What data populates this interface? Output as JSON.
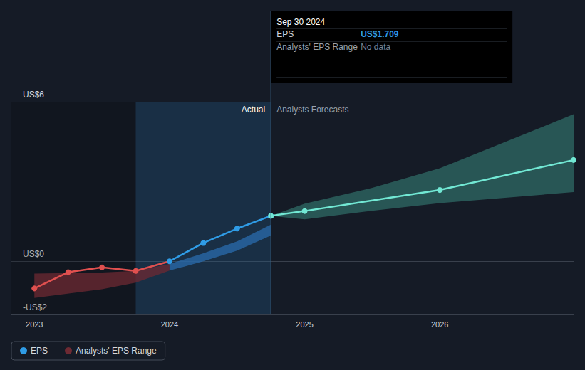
{
  "chart_data": {
    "type": "line",
    "xlim": [
      2022.83,
      2026.99
    ],
    "xticks": [
      2023,
      2024,
      2025,
      2026
    ],
    "ylim": [
      -2,
      6
    ],
    "yticks": [
      {
        "value": -2,
        "label": "-US$2"
      },
      {
        "value": 0,
        "label": "US$0"
      },
      {
        "value": 6,
        "label": "US$6"
      }
    ],
    "grid": true,
    "legend": "bottom-left",
    "window": [
      2023.75,
      2024.75
    ],
    "annotations": {
      "actual": "Actual",
      "forecast": "Analysts Forecasts"
    },
    "tooltip": {
      "title": "Sep 30 2024",
      "rows": [
        {
          "label": "EPS",
          "value": "US$1.709"
        },
        {
          "label": "Analysts' EPS Range",
          "value": "No data"
        }
      ]
    },
    "series": [
      {
        "name": "EPS",
        "type": "line",
        "x": [
          2023.0,
          2023.25,
          2023.5,
          2023.75,
          2024.0,
          2024.25,
          2024.5,
          2024.75
        ],
        "values": [
          -1.02,
          -0.41,
          -0.23,
          -0.36,
          0.0,
          0.69,
          1.23,
          1.709
        ],
        "colors": [
          "#e0504f",
          "#e0504f",
          "#e0504f",
          "#e0504f",
          "#2f9ce6",
          "#2f9ce6",
          "#2f9ce6",
          "#2f9ce6"
        ]
      },
      {
        "name": "EPS",
        "type": "line",
        "x": [
          2024.75,
          2025.0,
          2026.0,
          2026.99
        ],
        "values": [
          1.709,
          1.89,
          2.68,
          3.81
        ],
        "color": "#72e8d4"
      },
      {
        "name": "Analysts' EPS Range",
        "type": "band",
        "x": [
          2023.0,
          2023.5,
          2023.75,
          2024.0
        ],
        "low": [
          -1.38,
          -1.05,
          -0.8,
          -0.35
        ],
        "high": [
          -0.46,
          -0.42,
          -0.36,
          -0.1
        ],
        "color": "#6e2a33"
      },
      {
        "name": "Analysts' EPS Range",
        "type": "band",
        "x": [
          2024.0,
          2024.25,
          2024.5,
          2024.75
        ],
        "low": [
          -0.35,
          0.0,
          0.4,
          0.97
        ],
        "high": [
          -0.1,
          0.3,
          0.75,
          1.38
        ],
        "color": "#2a6cae"
      },
      {
        "name": "Analysts' EPS Range",
        "type": "band",
        "x": [
          2024.75,
          2025.0,
          2025.5,
          2026.0,
          2026.99
        ],
        "low": [
          1.709,
          1.58,
          1.9,
          2.19,
          2.6
        ],
        "high": [
          1.709,
          2.17,
          2.76,
          3.5,
          5.53
        ],
        "color": "#2f6b66"
      }
    ]
  }
}
